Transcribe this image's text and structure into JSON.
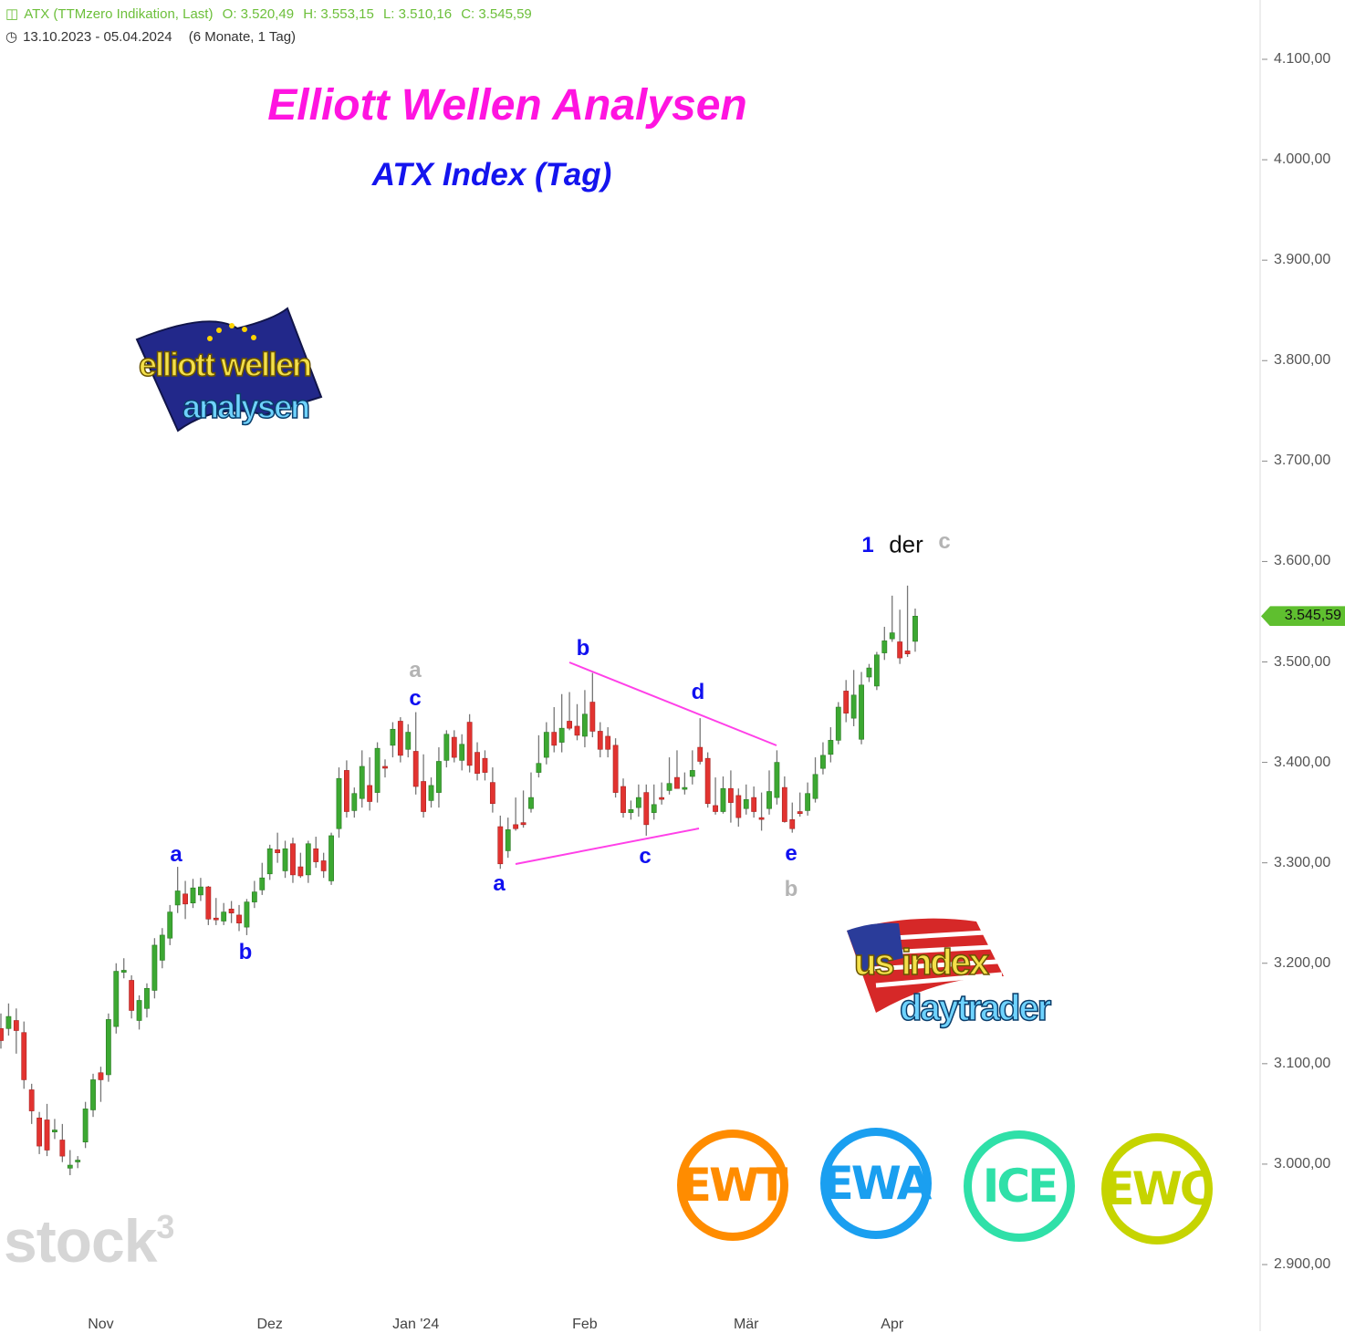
{
  "header": {
    "icon": "candlestick-icon",
    "instrument": "ATX (TTMzero Indikation, Last)",
    "open": "O: 3.520,49",
    "high": "H: 3.553,15",
    "low": "L: 3.510,16",
    "close": "C: 3.545,59",
    "clock_icon": "clock-icon",
    "range": "13.10.2023 - 05.04.2024",
    "period": "(6 Monate, 1 Tag)"
  },
  "title": "Elliott Wellen Analysen",
  "subtitle": "ATX Index (Tag)",
  "watermark": "stock3",
  "logos": {
    "elliott": {
      "line1": "elliott wellen",
      "line2": "analysen"
    },
    "usindex": {
      "line1": "us index",
      "line2": "daytrader"
    },
    "badges": [
      {
        "text": "EWT",
        "color": "#ff8c00"
      },
      {
        "text": "EWA",
        "color": "#1a9ff0"
      },
      {
        "text": "ICE",
        "color": "#2fe0a8"
      },
      {
        "text": "EWC",
        "color": "#c6d400"
      }
    ]
  },
  "wave_labels": {
    "a1": "a",
    "b1": "b",
    "a_gray": "a",
    "c1": "c",
    "a2": "a",
    "b2": "b",
    "c2": "c",
    "d": "d",
    "e": "e",
    "b_gray": "b",
    "one": "1",
    "der": "der",
    "c_gray": "c"
  },
  "colors": {
    "up": "#3ca832",
    "down": "#e23330",
    "wick": "#777777",
    "trendline": "#ff40e8",
    "price_tag": "#5fbf2f"
  },
  "chart_data": {
    "type": "candlestick",
    "title": "",
    "ylim": [
      2900,
      4100
    ],
    "yticks": [
      "4.100,00",
      "4.000,00",
      "3.900,00",
      "3.800,00",
      "3.700,00",
      "3.600,00",
      "3.500,00",
      "3.400,00",
      "3.300,00",
      "3.200,00",
      "3.100,00",
      "3.000,00",
      "2.900,00"
    ],
    "ytick_values": [
      4100,
      4000,
      3900,
      3800,
      3700,
      3600,
      3500,
      3400,
      3300,
      3200,
      3100,
      3000,
      2900
    ],
    "xticks": [
      {
        "label": "Nov",
        "candle": 13
      },
      {
        "label": "Dez",
        "candle": 35
      },
      {
        "label": "Jan '24",
        "candle": 54
      },
      {
        "label": "Feb",
        "candle": 76
      },
      {
        "label": "Mär",
        "candle": 97
      },
      {
        "label": "Apr",
        "candle": 116
      }
    ],
    "last_price": 3545.59,
    "last_price_label": "3.545,59",
    "grid": false,
    "ohlc": [
      [
        3135,
        3150,
        3115,
        3123
      ],
      [
        3135,
        3160,
        3128,
        3147
      ],
      [
        3143,
        3155,
        3110,
        3133
      ],
      [
        3131,
        3142,
        3075,
        3084
      ],
      [
        3074,
        3080,
        3040,
        3053
      ],
      [
        3046,
        3052,
        3010,
        3018
      ],
      [
        3044,
        3060,
        3008,
        3014
      ],
      [
        3032,
        3045,
        3025,
        3034
      ],
      [
        3024,
        3040,
        3002,
        3008
      ],
      [
        2996,
        3014,
        2989,
        2999
      ],
      [
        3003,
        3008,
        2996,
        3004
      ],
      [
        3022,
        3062,
        3016,
        3055
      ],
      [
        3054,
        3090,
        3047,
        3084
      ],
      [
        3091,
        3097,
        3062,
        3084
      ],
      [
        3089,
        3150,
        3082,
        3144
      ],
      [
        3137,
        3200,
        3130,
        3192
      ],
      [
        3191,
        3205,
        3185,
        3193
      ],
      [
        3183,
        3188,
        3145,
        3153
      ],
      [
        3143,
        3168,
        3134,
        3163
      ],
      [
        3155,
        3180,
        3146,
        3175
      ],
      [
        3173,
        3225,
        3165,
        3218
      ],
      [
        3203,
        3235,
        3195,
        3228
      ],
      [
        3225,
        3258,
        3218,
        3251
      ],
      [
        3258,
        3296,
        3250,
        3272
      ],
      [
        3269,
        3282,
        3244,
        3259
      ],
      [
        3260,
        3284,
        3255,
        3275
      ],
      [
        3268,
        3285,
        3262,
        3276
      ],
      [
        3276,
        3277,
        3238,
        3244
      ],
      [
        3245,
        3265,
        3238,
        3244
      ],
      [
        3242,
        3260,
        3238,
        3251
      ],
      [
        3254,
        3262,
        3240,
        3250
      ],
      [
        3248,
        3258,
        3232,
        3240
      ],
      [
        3236,
        3264,
        3228,
        3261
      ],
      [
        3261,
        3282,
        3255,
        3271
      ],
      [
        3273,
        3300,
        3268,
        3285
      ],
      [
        3289,
        3318,
        3283,
        3314
      ],
      [
        3313,
        3330,
        3300,
        3310
      ],
      [
        3292,
        3322,
        3285,
        3314
      ],
      [
        3319,
        3325,
        3280,
        3288
      ],
      [
        3296,
        3310,
        3285,
        3287
      ],
      [
        3288,
        3322,
        3280,
        3319
      ],
      [
        3314,
        3326,
        3295,
        3301
      ],
      [
        3302,
        3310,
        3285,
        3292
      ],
      [
        3282,
        3330,
        3278,
        3327
      ],
      [
        3334,
        3395,
        3325,
        3384
      ],
      [
        3392,
        3402,
        3345,
        3351
      ],
      [
        3352,
        3375,
        3345,
        3369
      ],
      [
        3364,
        3412,
        3355,
        3396
      ],
      [
        3377,
        3405,
        3352,
        3361
      ],
      [
        3370,
        3420,
        3360,
        3414
      ],
      [
        3396,
        3403,
        3385,
        3395
      ],
      [
        3417,
        3440,
        3405,
        3433
      ],
      [
        3441,
        3445,
        3400,
        3407
      ],
      [
        3413,
        3438,
        3405,
        3430
      ],
      [
        3411,
        3450,
        3368,
        3376
      ],
      [
        3381,
        3408,
        3345,
        3351
      ],
      [
        3362,
        3385,
        3355,
        3377
      ],
      [
        3370,
        3415,
        3355,
        3401
      ],
      [
        3402,
        3432,
        3395,
        3428
      ],
      [
        3425,
        3432,
        3400,
        3405
      ],
      [
        3402,
        3428,
        3392,
        3418
      ],
      [
        3440,
        3448,
        3390,
        3397
      ],
      [
        3410,
        3420,
        3382,
        3389
      ],
      [
        3404,
        3412,
        3382,
        3390
      ],
      [
        3380,
        3395,
        3350,
        3359
      ],
      [
        3336,
        3347,
        3294,
        3299
      ],
      [
        3312,
        3345,
        3305,
        3333
      ],
      [
        3338,
        3365,
        3332,
        3334
      ],
      [
        3340,
        3372,
        3335,
        3338
      ],
      [
        3354,
        3390,
        3350,
        3365
      ],
      [
        3390,
        3427,
        3385,
        3399
      ],
      [
        3405,
        3440,
        3398,
        3430
      ],
      [
        3430,
        3455,
        3410,
        3417
      ],
      [
        3420,
        3468,
        3410,
        3434
      ],
      [
        3441,
        3470,
        3432,
        3434
      ],
      [
        3436,
        3458,
        3422,
        3427
      ],
      [
        3426,
        3472,
        3415,
        3448
      ],
      [
        3460,
        3489,
        3425,
        3431
      ],
      [
        3431,
        3440,
        3405,
        3413
      ],
      [
        3426,
        3435,
        3405,
        3413
      ],
      [
        3417,
        3424,
        3365,
        3370
      ],
      [
        3376,
        3384,
        3345,
        3350
      ],
      [
        3350,
        3362,
        3343,
        3353
      ],
      [
        3355,
        3378,
        3346,
        3365
      ],
      [
        3370,
        3378,
        3327,
        3338
      ],
      [
        3350,
        3378,
        3343,
        3358
      ],
      [
        3365,
        3380,
        3358,
        3364
      ],
      [
        3372,
        3405,
        3368,
        3379
      ],
      [
        3385,
        3412,
        3375,
        3374
      ],
      [
        3374,
        3390,
        3368,
        3375
      ],
      [
        3386,
        3412,
        3378,
        3392
      ],
      [
        3415,
        3444,
        3398,
        3401
      ],
      [
        3404,
        3410,
        3355,
        3359
      ],
      [
        3357,
        3385,
        3348,
        3351
      ],
      [
        3351,
        3386,
        3349,
        3374
      ],
      [
        3374,
        3392,
        3340,
        3360
      ],
      [
        3367,
        3374,
        3336,
        3345
      ],
      [
        3354,
        3378,
        3348,
        3363
      ],
      [
        3365,
        3376,
        3345,
        3351
      ],
      [
        3345,
        3370,
        3332,
        3344
      ],
      [
        3354,
        3392,
        3348,
        3371
      ],
      [
        3365,
        3412,
        3358,
        3400
      ],
      [
        3375,
        3386,
        3340,
        3341
      ],
      [
        3343,
        3360,
        3330,
        3334
      ],
      [
        3351,
        3370,
        3346,
        3349
      ],
      [
        3352,
        3380,
        3347,
        3369
      ],
      [
        3364,
        3405,
        3360,
        3388
      ],
      [
        3394,
        3420,
        3388,
        3407
      ],
      [
        3408,
        3435,
        3400,
        3422
      ],
      [
        3422,
        3460,
        3418,
        3455
      ],
      [
        3471,
        3482,
        3440,
        3449
      ],
      [
        3444,
        3492,
        3436,
        3467
      ],
      [
        3423,
        3490,
        3418,
        3477
      ],
      [
        3485,
        3498,
        3480,
        3494
      ],
      [
        3476,
        3510,
        3472,
        3507
      ],
      [
        3509,
        3535,
        3502,
        3521
      ],
      [
        3523,
        3566,
        3520,
        3529
      ],
      [
        3520,
        3552,
        3498,
        3504
      ],
      [
        3511,
        3576,
        3505,
        3508
      ],
      [
        3520.49,
        3553.15,
        3510.16,
        3545.59
      ]
    ]
  }
}
